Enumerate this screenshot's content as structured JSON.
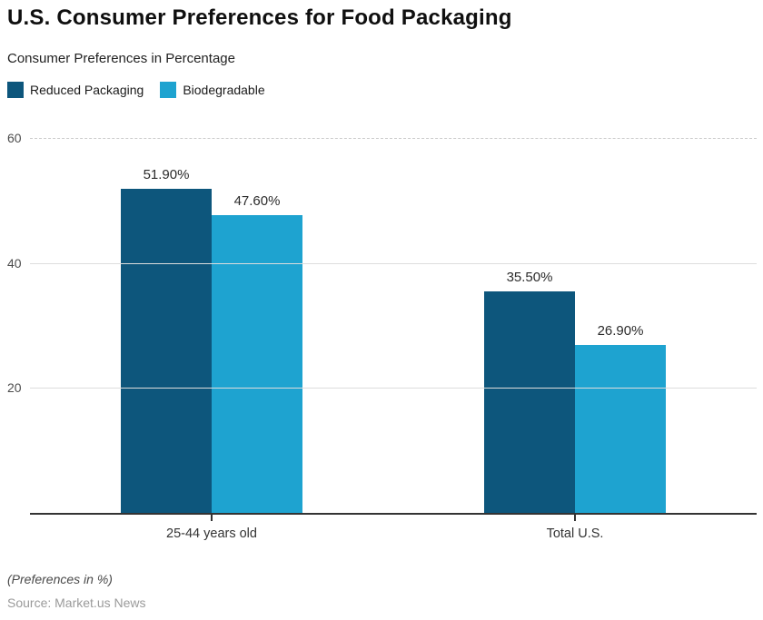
{
  "header": {
    "title": "U.S. Consumer Preferences for Food Packaging",
    "subtitle": "Consumer Preferences in Percentage"
  },
  "chart_data": {
    "type": "bar",
    "title": "U.S. Consumer Preferences for Food Packaging",
    "subtitle": "Consumer Preferences in Percentage",
    "categories": [
      "25-44 years old",
      "Total U.S."
    ],
    "series": [
      {
        "name": "Reduced Packaging",
        "color": "#0d567c",
        "values": [
          51.9,
          35.5
        ],
        "labels": [
          "51.90%",
          "35.50%"
        ]
      },
      {
        "name": "Biodegradable",
        "color": "#1ea3d0",
        "values": [
          47.6,
          26.9
        ],
        "labels": [
          "47.60%",
          "26.90%"
        ]
      }
    ],
    "yticks": [
      20,
      40,
      60
    ],
    "ylim": [
      0,
      60
    ],
    "xlabel": "",
    "ylabel": "",
    "grid": "horizontal",
    "legend_position": "top-left",
    "axis_color": "#333333",
    "gridline_color": "#dddddd"
  },
  "footer": {
    "note": "(Preferences in %)",
    "source": "Source: Market.us News"
  }
}
